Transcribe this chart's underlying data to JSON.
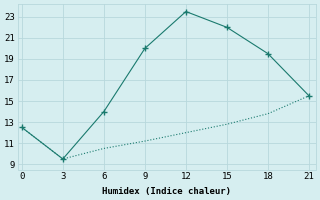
{
  "line1_x": [
    0,
    3,
    6,
    9,
    12,
    15,
    18,
    21
  ],
  "line1_y": [
    12.5,
    9.5,
    14.0,
    20.0,
    23.5,
    22.0,
    19.5,
    15.5
  ],
  "line2_x": [
    0,
    3,
    6,
    9,
    12,
    15,
    18,
    21
  ],
  "line2_y": [
    12.5,
    9.5,
    10.5,
    11.2,
    12.0,
    12.8,
    13.8,
    15.5
  ],
  "color": "#1a7a6e",
  "xlabel": "Humidex (Indice chaleur)",
  "xlim": [
    -0.3,
    21.5
  ],
  "ylim": [
    8.5,
    24.2
  ],
  "xticks": [
    0,
    3,
    6,
    9,
    12,
    15,
    18,
    21
  ],
  "yticks": [
    9,
    11,
    13,
    15,
    17,
    19,
    21,
    23
  ],
  "bg_color": "#d6eef0",
  "grid_color": "#b8d8dc",
  "fig_width": 3.2,
  "fig_height": 2.0,
  "dpi": 100
}
